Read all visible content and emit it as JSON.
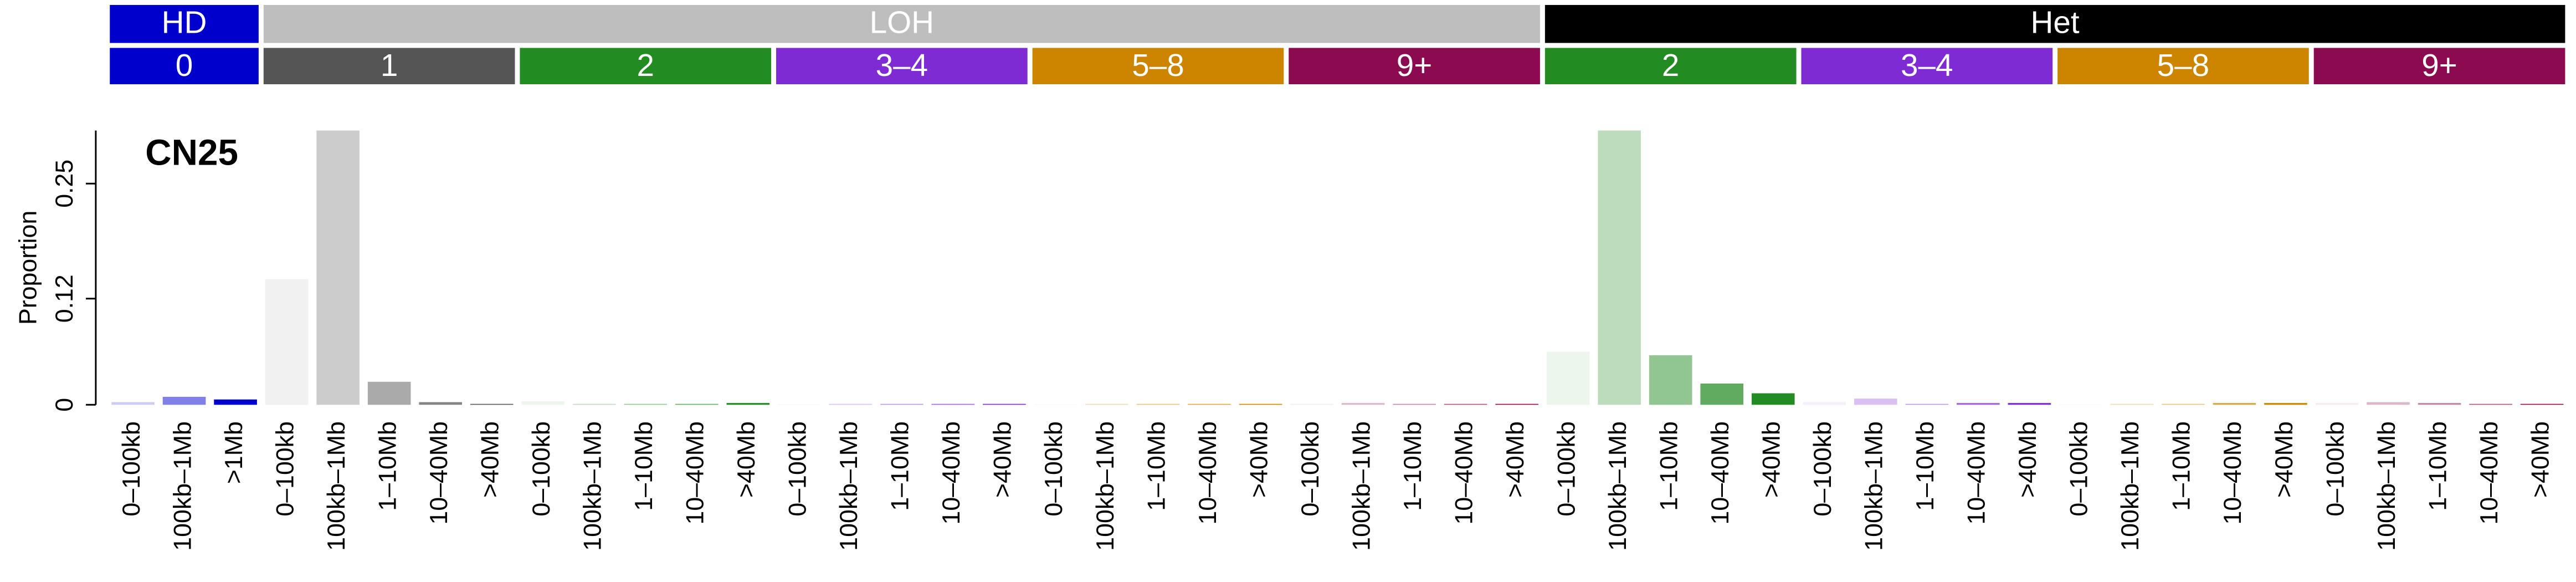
{
  "chart_data": {
    "type": "bar",
    "title": "CN25",
    "y_label": "Proportion",
    "ylim": [
      0,
      0.31
    ],
    "yticks": [
      0,
      0.12,
      0.25
    ],
    "groups": [
      {
        "name": "HD",
        "color": "#0000cd",
        "subgroups": [
          {
            "name": "0",
            "color": "#0000cd",
            "categories": [
              "0–100kb",
              "100kb–1Mb",
              ">1Mb"
            ],
            "values": [
              0.003,
              0.009,
              0.006
            ]
          }
        ]
      },
      {
        "name": "LOH",
        "color": "#bebebe",
        "subgroups": [
          {
            "name": "1",
            "color": "#555555",
            "categories": [
              "0–100kb",
              "100kb–1Mb",
              "1–10Mb",
              "10–40Mb",
              ">40Mb"
            ],
            "values": [
              0.142,
              0.31,
              0.026,
              0.003,
              0.001
            ]
          },
          {
            "name": "2",
            "color": "#228b22",
            "categories": [
              "0–100kb",
              "100kb–1Mb",
              "1–10Mb",
              "10–40Mb",
              ">40Mb"
            ],
            "values": [
              0.004,
              0.001,
              0.001,
              0.001,
              0.002
            ]
          },
          {
            "name": "3–4",
            "color": "#7f2bd4",
            "categories": [
              "0–100kb",
              "100kb–1Mb",
              "1–10Mb",
              "10–40Mb",
              ">40Mb"
            ],
            "values": [
              0.0005,
              0.001,
              0.001,
              0.001,
              0.001
            ]
          },
          {
            "name": "5–8",
            "color": "#cd8500",
            "categories": [
              "0–100kb",
              "100kb–1Mb",
              "1–10Mb",
              "10–40Mb",
              ">40Mb"
            ],
            "values": [
              0.0005,
              0.001,
              0.001,
              0.001,
              0.001
            ]
          },
          {
            "name": "9+",
            "color": "#8b0a50",
            "categories": [
              "0–100kb",
              "100kb–1Mb",
              "1–10Mb",
              "10–40Mb",
              ">40Mb"
            ],
            "values": [
              0.001,
              0.002,
              0.001,
              0.001,
              0.001
            ]
          }
        ]
      },
      {
        "name": "Het",
        "color": "#000000",
        "subgroups": [
          {
            "name": "2",
            "color": "#228b22",
            "categories": [
              "0–100kb",
              "100kb–1Mb",
              "1–10Mb",
              "10–40Mb",
              ">40Mb"
            ],
            "values": [
              0.06,
              0.31,
              0.056,
              0.024,
              0.013
            ]
          },
          {
            "name": "3–4",
            "color": "#7f2bd4",
            "categories": [
              "0–100kb",
              "100kb–1Mb",
              "1–10Mb",
              "10–40Mb",
              ">40Mb"
            ],
            "values": [
              0.003,
              0.007,
              0.001,
              0.002,
              0.002
            ]
          },
          {
            "name": "5–8",
            "color": "#cd8500",
            "categories": [
              "0–100kb",
              "100kb–1Mb",
              "1–10Mb",
              "10–40Mb",
              ">40Mb"
            ],
            "values": [
              0.0005,
              0.001,
              0.001,
              0.002,
              0.002
            ]
          },
          {
            "name": "9+",
            "color": "#8b0a50",
            "categories": [
              "0–100kb",
              "100kb–1Mb",
              "1–10Mb",
              "10–40Mb",
              ">40Mb"
            ],
            "values": [
              0.002,
              0.003,
              0.002,
              0.001,
              0.001
            ]
          }
        ]
      }
    ]
  }
}
